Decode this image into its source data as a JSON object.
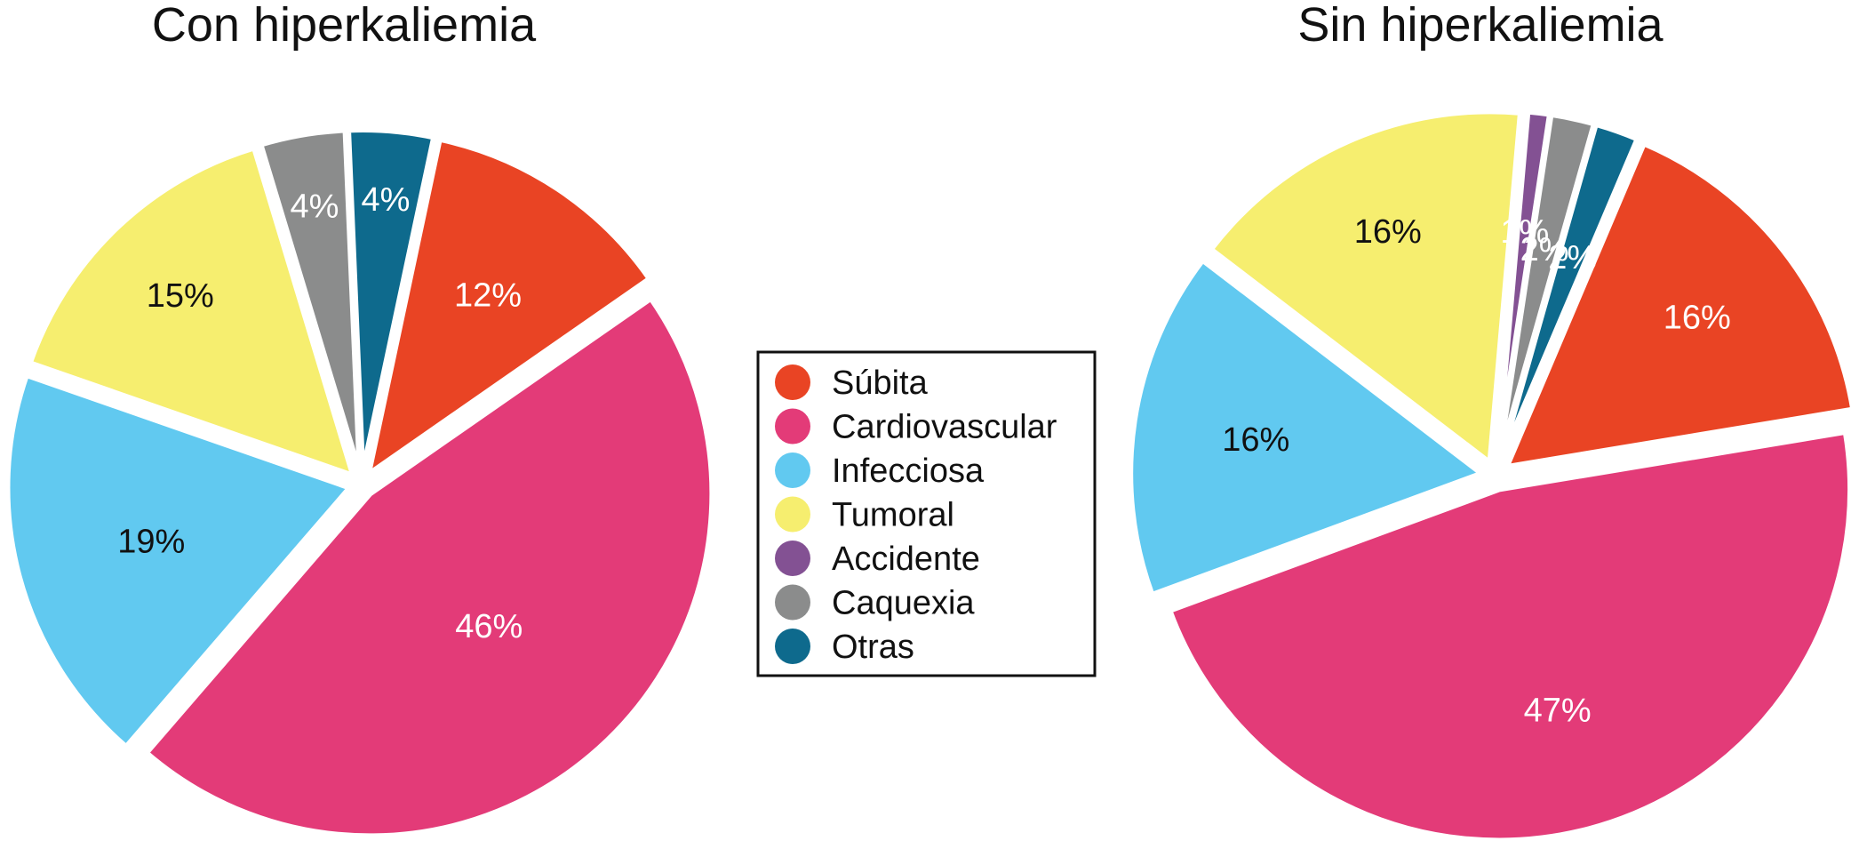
{
  "chart_data": [
    {
      "type": "pie",
      "title": "Con hiperkaliemia",
      "slices": [
        {
          "name": "Súbita",
          "value": 12,
          "label": "12%"
        },
        {
          "name": "Cardiovascular",
          "value": 46,
          "label": "46%"
        },
        {
          "name": "Infecciosa",
          "value": 19,
          "label": "19%"
        },
        {
          "name": "Tumoral",
          "value": 15,
          "label": "15%"
        },
        {
          "name": "Caquexia",
          "value": 4,
          "label": "4%"
        },
        {
          "name": "Otras",
          "value": 4,
          "label": "4%"
        }
      ]
    },
    {
      "type": "pie",
      "title": "Sin hiperkaliemia",
      "slices": [
        {
          "name": "Súbita",
          "value": 16,
          "label": "16%"
        },
        {
          "name": "Cardiovascular",
          "value": 47,
          "label": "47%"
        },
        {
          "name": "Infecciosa",
          "value": 16,
          "label": "16%"
        },
        {
          "name": "Tumoral",
          "value": 16,
          "label": "16%"
        },
        {
          "name": "Accidente",
          "value": 1,
          "label": "1%"
        },
        {
          "name": "Caquexia",
          "value": 2,
          "label": "2%"
        },
        {
          "name": "Otras",
          "value": 2,
          "label": "2%"
        }
      ]
    }
  ],
  "legend": {
    "placement": "center",
    "items": [
      {
        "name": "Súbita",
        "color": "#e94424"
      },
      {
        "name": "Cardiovascular",
        "color": "#e33b78"
      },
      {
        "name": "Infecciosa",
        "color": "#61c9f0"
      },
      {
        "name": "Tumoral",
        "color": "#f6ee6f"
      },
      {
        "name": "Accidente",
        "color": "#835193"
      },
      {
        "name": "Caquexia",
        "color": "#8b8c8c"
      },
      {
        "name": "Otras",
        "color": "#0e6a8d"
      }
    ]
  },
  "label_colors": {
    "Súbita": "#ffffff",
    "Cardiovascular": "#ffffff",
    "Infecciosa": "#111111",
    "Tumoral": "#111111",
    "Accidente": "#ffffff",
    "Caquexia": "#ffffff",
    "Otras": "#ffffff"
  }
}
